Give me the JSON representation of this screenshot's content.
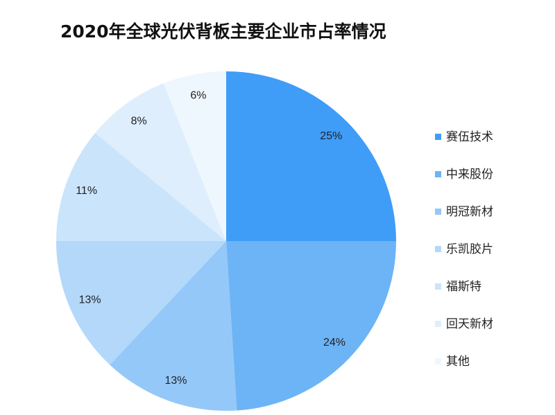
{
  "chart_data": {
    "type": "pie",
    "title": "2020年全球光伏背板主要企业市占率情况",
    "categories": [
      "赛伍技术",
      "中来股份",
      "明冠新材",
      "乐凯胶片",
      "福斯特",
      "回天新材",
      "其他"
    ],
    "values": [
      25,
      24,
      13,
      13,
      11,
      8,
      6
    ],
    "data_labels": [
      "25%",
      "24%",
      "13%",
      "13%",
      "11%",
      "8%",
      "6%"
    ],
    "colors": [
      "#3f9df7",
      "#6cb4f5",
      "#94c8f8",
      "#b3d8fa",
      "#cae4fb",
      "#deeefc",
      "#eff7fe"
    ],
    "legend_position": "right"
  }
}
